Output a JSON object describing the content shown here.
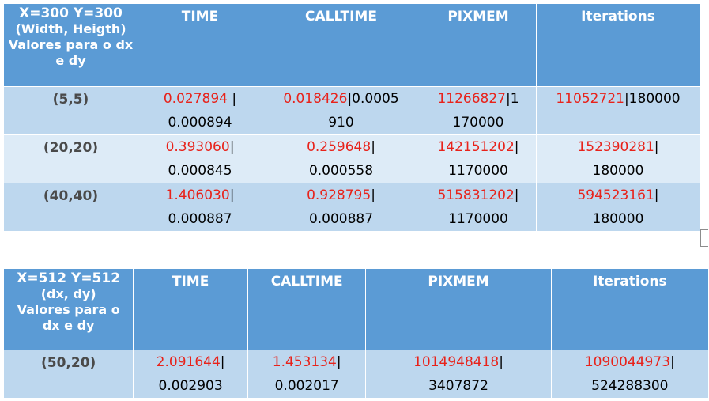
{
  "table1": {
    "corner": {
      "line1": "X=300 Y=300",
      "line2": "(Width, Heigth)",
      "line3": "Valores para o dx",
      "line4": "e dy"
    },
    "headers": [
      "TIME",
      "CALLTIME",
      "PIXMEM",
      "Iterations"
    ],
    "rows": [
      {
        "label": "(5,5)",
        "time": {
          "red": "0.027894",
          "sep": " |",
          "rest": "0.000894"
        },
        "calltime": {
          "red": "0.018426",
          "sep": "|0.0005",
          "rest": "910"
        },
        "pixmem": {
          "red": "11266827",
          "sep": "|1",
          "rest": "170000"
        },
        "iterations": {
          "red": "11052721",
          "sep": "|180000",
          "rest": ""
        }
      },
      {
        "label": "(20,20)",
        "time": {
          "red": "0.393060",
          "sep": "|",
          "rest": "0.000845"
        },
        "calltime": {
          "red": "0.259648",
          "sep": "|",
          "rest": "0.000558"
        },
        "pixmem": {
          "red": "142151202",
          "sep": "|",
          "rest": "1170000"
        },
        "iterations": {
          "red": "152390281",
          "sep": "|",
          "rest": "180000"
        }
      },
      {
        "label": "(40,40)",
        "time": {
          "red": "1.406030",
          "sep": "|",
          "rest": "0.000887"
        },
        "calltime": {
          "red": "0.928795",
          "sep": "|",
          "rest": "0.000887"
        },
        "pixmem": {
          "red": "515831202",
          "sep": "|",
          "rest": "1170000"
        },
        "iterations": {
          "red": "594523161",
          "sep": "|",
          "rest": "180000"
        }
      }
    ]
  },
  "table2": {
    "corner": {
      "line1": "X=512  Y=512",
      "line2": "(dx, dy)",
      "line3": "Valores para o",
      "line4": "dx e dy"
    },
    "headers": [
      "TIME",
      "CALLTIME",
      "PIXMEM",
      "Iterations"
    ],
    "rows": [
      {
        "label": "(50,20)",
        "time": {
          "red": "2.091644",
          "sep": "|",
          "rest": "0.002903"
        },
        "calltime": {
          "red": "1.453134",
          "sep": "|",
          "rest": "0.002017"
        },
        "pixmem": {
          "red": "1014948418",
          "sep": "|",
          "rest": "3407872"
        },
        "iterations": {
          "red": "1090044973",
          "sep": "|",
          "rest": "524288300"
        }
      }
    ]
  },
  "colors": {
    "header_bg": "#5b9bd5",
    "row_dark": "#bdd7ee",
    "row_light": "#ddebf7",
    "value_red": "#e8221a"
  }
}
